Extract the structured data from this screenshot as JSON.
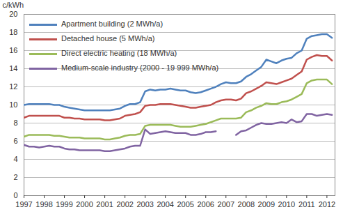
{
  "chart_data": {
    "type": "line",
    "y_label": "c/kWh",
    "x": [
      1997,
      1997.25,
      1997.5,
      1997.75,
      1998,
      1998.25,
      1998.5,
      1998.75,
      1999,
      1999.25,
      1999.5,
      1999.75,
      2000,
      2000.25,
      2000.5,
      2000.75,
      2001,
      2001.25,
      2001.5,
      2001.75,
      2002,
      2002.25,
      2002.5,
      2002.75,
      2003,
      2003.25,
      2003.5,
      2003.75,
      2004,
      2004.25,
      2004.5,
      2004.75,
      2005,
      2005.25,
      2005.5,
      2005.75,
      2006,
      2006.25,
      2006.5,
      2006.75,
      2007,
      2007.25,
      2007.5,
      2007.75,
      2008,
      2008.25,
      2008.5,
      2008.75,
      2009,
      2009.25,
      2009.5,
      2009.75,
      2010,
      2010.25,
      2010.5,
      2010.75,
      2011,
      2011.25,
      2011.5,
      2011.75,
      2012,
      2012.25
    ],
    "series": [
      {
        "name": "Apartment building (2 MWh/a)",
        "color": "#4f81bd",
        "values": [
          10.0,
          10.1,
          10.1,
          10.1,
          10.1,
          10.1,
          10.0,
          10.0,
          9.8,
          9.7,
          9.6,
          9.5,
          9.4,
          9.4,
          9.4,
          9.4,
          9.4,
          9.4,
          9.5,
          9.6,
          9.9,
          10.1,
          10.1,
          10.3,
          11.5,
          11.7,
          11.6,
          11.7,
          11.7,
          11.8,
          11.7,
          11.6,
          11.6,
          11.4,
          11.3,
          11.4,
          11.6,
          11.8,
          12.0,
          12.3,
          12.5,
          12.4,
          12.4,
          12.6,
          13.1,
          13.4,
          13.8,
          14.2,
          15.0,
          14.8,
          14.6,
          14.9,
          15.1,
          15.2,
          15.7,
          16.0,
          17.3,
          17.6,
          17.7,
          17.8,
          17.8,
          17.4
        ]
      },
      {
        "name": "Detached house (5 MWh/a)",
        "color": "#c0504d",
        "values": [
          8.6,
          8.8,
          8.8,
          8.8,
          8.8,
          8.8,
          8.8,
          8.8,
          8.6,
          8.6,
          8.5,
          8.5,
          8.4,
          8.4,
          8.4,
          8.4,
          8.3,
          8.3,
          8.4,
          8.5,
          8.8,
          8.9,
          9.0,
          9.2,
          9.9,
          10.0,
          10.0,
          10.1,
          10.1,
          10.1,
          10.0,
          9.9,
          9.8,
          9.7,
          9.7,
          9.8,
          9.9,
          10.0,
          10.3,
          10.5,
          10.6,
          10.6,
          10.5,
          10.7,
          11.3,
          11.5,
          11.8,
          12.1,
          12.5,
          12.4,
          12.3,
          12.5,
          12.7,
          12.9,
          13.3,
          13.7,
          15.0,
          15.3,
          15.5,
          15.4,
          15.4,
          14.9
        ]
      },
      {
        "name": "Direct electric heating (18 MWh/a)",
        "color": "#9bbb59",
        "values": [
          6.5,
          6.7,
          6.7,
          6.7,
          6.7,
          6.7,
          6.6,
          6.6,
          6.5,
          6.4,
          6.4,
          6.4,
          6.3,
          6.3,
          6.3,
          6.3,
          6.2,
          6.2,
          6.3,
          6.4,
          6.6,
          6.7,
          6.7,
          6.8,
          7.7,
          7.8,
          7.8,
          7.8,
          7.8,
          7.8,
          7.7,
          7.6,
          7.6,
          7.6,
          7.7,
          7.8,
          7.9,
          8.1,
          8.3,
          8.5,
          8.5,
          8.5,
          8.5,
          8.6,
          9.2,
          9.4,
          9.7,
          9.9,
          10.2,
          10.1,
          10.1,
          10.3,
          10.4,
          10.6,
          10.9,
          11.2,
          12.4,
          12.7,
          12.8,
          12.8,
          12.8,
          12.3
        ]
      },
      {
        "name": "Medium-scale industry (2000 - 19 999 MWh/a)",
        "color": "#8064a2",
        "values": [
          5.6,
          5.4,
          5.4,
          5.3,
          5.4,
          5.5,
          5.4,
          5.4,
          5.2,
          5.1,
          5.1,
          5.0,
          5.0,
          5.0,
          5.0,
          5.0,
          4.9,
          4.9,
          5.0,
          5.1,
          5.2,
          5.4,
          5.5,
          5.5,
          7.3,
          6.8,
          6.9,
          7.0,
          7.1,
          7.0,
          6.9,
          6.9,
          6.9,
          6.7,
          6.7,
          6.8,
          7.0,
          7.0,
          7.1,
          null,
          null,
          null,
          6.7,
          7.1,
          7.2,
          7.5,
          7.8,
          8.0,
          7.9,
          7.9,
          8.0,
          8.1,
          8.0,
          8.4,
          8.1,
          8.2,
          9.0,
          9.0,
          8.8,
          8.9,
          9.0,
          8.9
        ]
      }
    ],
    "xlim": [
      1997,
      2012.4
    ],
    "xticks": [
      1997,
      1998,
      1999,
      2000,
      2001,
      2002,
      2003,
      2004,
      2005,
      2006,
      2007,
      2008,
      2009,
      2010,
      2011,
      2012
    ],
    "ylim": [
      0,
      20
    ],
    "yticks": [
      0,
      2,
      4,
      6,
      8,
      10,
      12,
      14,
      16,
      18,
      20
    ],
    "grid": true,
    "legend": "top-left"
  }
}
